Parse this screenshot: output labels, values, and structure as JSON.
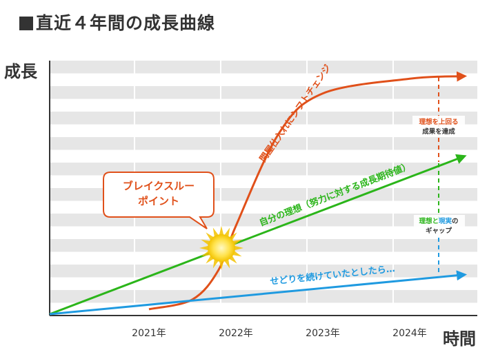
{
  "title": "直近４年間の成長曲線",
  "colors": {
    "orange": "#e0501a",
    "green": "#2bb51a",
    "blue": "#1f9ae0",
    "grid_band": "#e6e6e6"
  },
  "chart_data": {
    "type": "line",
    "title": "直近４年間の成長曲線",
    "xlabel": "時間",
    "ylabel": "成長",
    "x_ticks": [
      "2021年",
      "2022年",
      "2023年",
      "2024年"
    ],
    "series": [
      {
        "name": "問屋仕入れにシフトチェンジ",
        "color": "#e0501a",
        "x": [
          "2021年",
          "2021.5年",
          "2021.8年",
          "2022年",
          "2022.5年",
          "2023年",
          "2024年",
          "2024.6年"
        ],
        "y": [
          2,
          6,
          18,
          36,
          74,
          90,
          96,
          97
        ]
      },
      {
        "name": "自分の理想（努力に対する成長期待値）",
        "color": "#2bb51a",
        "x": [
          "2020年",
          "2024.6年"
        ],
        "y": [
          0,
          64
        ]
      },
      {
        "name": "せどりを続けていたとしたら…",
        "color": "#1f9ae0",
        "x": [
          "2020年",
          "2024.6年"
        ],
        "y": [
          0,
          16
        ]
      }
    ],
    "grid": "banded",
    "annotations": {
      "breakthrough": [
        "ブレイクスルー",
        "ポイント"
      ],
      "ideal_over": [
        "理想を上回る",
        "成果を達成"
      ],
      "gap_part1": "理想と",
      "gap_part2": "現実",
      "gap_part3": "の",
      "gap_line2": "ギャップ"
    }
  }
}
